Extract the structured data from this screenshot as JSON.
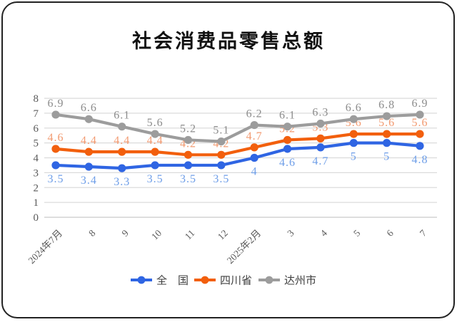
{
  "page": {
    "title": "社会消费品零售总额"
  },
  "chart_data": {
    "type": "line",
    "title": "社会消费品零售总额",
    "categories": [
      "2024年7月",
      "8",
      "9",
      "10",
      "11",
      "12",
      "2025年2月",
      "3",
      "4",
      "5",
      "6",
      "7"
    ],
    "series": [
      {
        "name": "全　国",
        "color": "#2F65E3",
        "label_color": "#6E9EE8",
        "label_position": "below",
        "values": [
          3.5,
          3.4,
          3.3,
          3.5,
          3.5,
          3.5,
          4,
          4.6,
          4.7,
          5,
          5,
          4.8
        ],
        "labels": [
          "3.5",
          "3.4",
          "3.3",
          "3.5",
          "3.5",
          "3.5",
          "4",
          "4.6",
          "4.7",
          "5",
          "5",
          "4.8"
        ]
      },
      {
        "name": "四川省",
        "color": "#F25F0D",
        "label_color": "#F29A70",
        "label_position": "above",
        "values": [
          4.6,
          4.4,
          4.4,
          4.4,
          4.2,
          4.2,
          4.7,
          5.2,
          5.3,
          5.6,
          5.6,
          5.6
        ],
        "labels": [
          "4.6",
          "4.4",
          "4.4",
          "4.4",
          "4.2",
          "4.2",
          "4.7",
          "5.2",
          "5.3",
          "5.6",
          "5.6",
          "5.6"
        ]
      },
      {
        "name": "达州市",
        "color": "#9C9C9C",
        "label_color": "#8C8C8C",
        "label_position": "above",
        "values": [
          6.9,
          6.6,
          6.1,
          5.6,
          5.2,
          5.1,
          6.2,
          6.1,
          6.3,
          6.6,
          6.8,
          6.9
        ],
        "labels": [
          "6.9",
          "6.6",
          "6.1",
          "5.6",
          "5.2",
          "5.1",
          "6.2",
          "6.1",
          "6.3",
          "6.6",
          "6.8",
          "6.9"
        ]
      }
    ],
    "y_axis": {
      "min": 0,
      "max": 8,
      "step": 1,
      "tick_labels": [
        "0",
        "1",
        "2",
        "3",
        "4",
        "5",
        "6",
        "7",
        "8"
      ]
    },
    "grid": true,
    "legend_position": "bottom",
    "style": {
      "axis_text_color": "#595959",
      "grid_color": "#DBDBDB",
      "baseline_color": "#C9C9C9",
      "legend_text_color": "#3F3F3F",
      "frame_border_color": "#232323",
      "background": "#FFFFFF"
    }
  }
}
